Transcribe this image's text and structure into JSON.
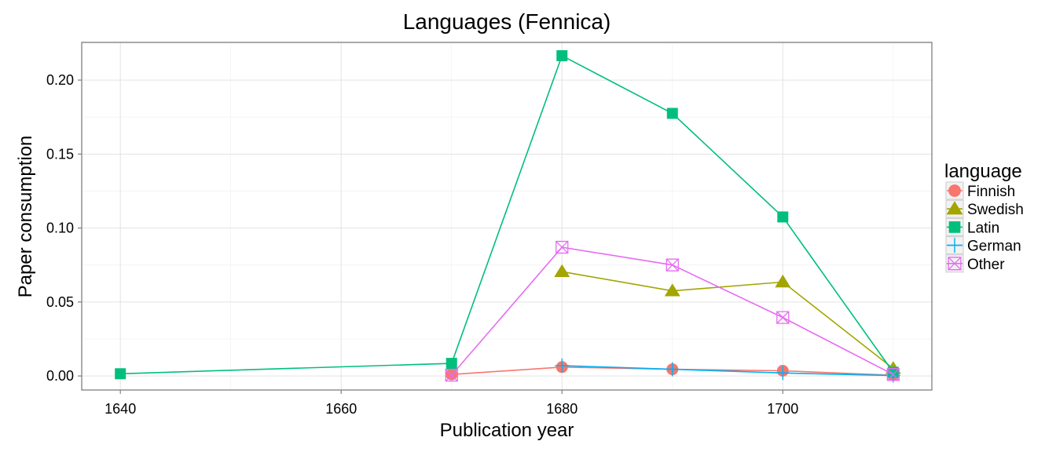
{
  "chart_data": {
    "type": "line",
    "title": "Languages (Fennica)",
    "xlabel": "Publication year",
    "ylabel": "Paper consumption",
    "xlim": [
      1636.5,
      1713.5
    ],
    "ylim": [
      -0.0095,
      0.2255
    ],
    "x_ticks": [
      1640,
      1660,
      1680,
      1700
    ],
    "x_tick_labels": [
      "1640",
      "1660",
      "1680",
      "1700"
    ],
    "y_ticks": [
      0.0,
      0.05,
      0.1,
      0.15,
      0.2
    ],
    "y_tick_labels": [
      "0.00",
      "0.05",
      "0.10",
      "0.15",
      "0.20"
    ],
    "grid": true,
    "legend_title": "language",
    "legend_position": "right",
    "series": [
      {
        "name": "Finnish",
        "color": "#F8766D",
        "marker": "circle",
        "x": [
          1670,
          1680,
          1690,
          1700,
          1710
        ],
        "y": [
          0.001,
          0.006,
          0.0045,
          0.0035,
          0.0005
        ]
      },
      {
        "name": "Swedish",
        "color": "#A3A500",
        "marker": "triangle",
        "x": [
          1680,
          1690,
          1700,
          1710
        ],
        "y": [
          0.0705,
          0.0575,
          0.0635,
          0.005
        ]
      },
      {
        "name": "Latin",
        "color": "#00BF7D",
        "marker": "square",
        "x": [
          1640,
          1670,
          1680,
          1690,
          1700,
          1710
        ],
        "y": [
          0.0015,
          0.0085,
          0.2165,
          0.1775,
          0.1075,
          0.0025
        ]
      },
      {
        "name": "German",
        "color": "#00B0F6",
        "marker": "plus",
        "x": [
          1680,
          1690,
          1700,
          1710
        ],
        "y": [
          0.007,
          0.0045,
          0.002,
          0.0003
        ]
      },
      {
        "name": "Other",
        "color": "#E76BF3",
        "marker": "square-x",
        "x": [
          1670,
          1680,
          1690,
          1700,
          1710
        ],
        "y": [
          0.0005,
          0.087,
          0.075,
          0.0395,
          0.001
        ]
      }
    ]
  }
}
